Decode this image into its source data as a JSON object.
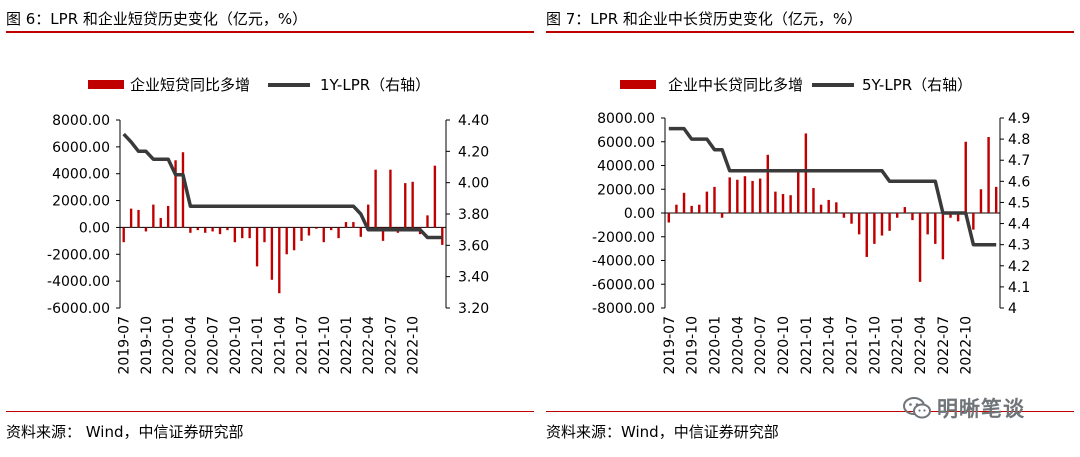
{
  "watermark": {
    "text": "明晰笔谈",
    "icon": "wechat-icon"
  },
  "charts": [
    {
      "title": "图 6：LPR 和企业短贷历史变化（亿元，%）",
      "source": "资料来源：  Wind，中信证券研究部",
      "chart_data": {
        "type": "bar+line",
        "legend": {
          "bar": "企业短贷同比多增",
          "line": "1Y-LPR（右轴）",
          "position": "top"
        },
        "bar_color": "#c00000",
        "line_color": "#3a3a3a",
        "left_axis": {
          "min": -6000,
          "max": 8000,
          "ticks": [
            "8000.00",
            "6000.00",
            "4000.00",
            "2000.00",
            "0.00",
            "-2000.00",
            "-4000.00",
            "-6000.00"
          ]
        },
        "right_axis": {
          "min": 3.2,
          "max": 4.4,
          "ticks": [
            "4.40",
            "4.20",
            "4.00",
            "3.80",
            "3.60",
            "3.40",
            "3.20"
          ]
        },
        "x_ticks": [
          "2019-07",
          "2019-10",
          "2020-01",
          "2020-04",
          "2020-07",
          "2020-10",
          "2021-01",
          "2021-04",
          "2021-07",
          "2021-10",
          "2022-01",
          "2022-04",
          "2022-07",
          "2022-10"
        ],
        "bars": [
          -1100,
          1400,
          1300,
          -300,
          1700,
          700,
          1600,
          5000,
          5600,
          -400,
          -200,
          -400,
          -300,
          -500,
          -200,
          -1100,
          -800,
          -800,
          -2900,
          -1100,
          -3900,
          -4900,
          -2000,
          -1700,
          -1000,
          -600,
          -100,
          -1100,
          -200,
          -800,
          400,
          400,
          -700,
          1700,
          4300,
          -1000,
          4300,
          -400,
          3300,
          3400,
          -500,
          900,
          4600,
          -1300
        ],
        "lpr": [
          4.31,
          4.26,
          4.2,
          4.2,
          4.15,
          4.15,
          4.15,
          4.05,
          4.05,
          3.85,
          3.85,
          3.85,
          3.85,
          3.85,
          3.85,
          3.85,
          3.85,
          3.85,
          3.85,
          3.85,
          3.85,
          3.85,
          3.85,
          3.85,
          3.85,
          3.85,
          3.85,
          3.85,
          3.85,
          3.85,
          3.85,
          3.85,
          3.8,
          3.7,
          3.7,
          3.7,
          3.7,
          3.7,
          3.7,
          3.7,
          3.7,
          3.65,
          3.65,
          3.65
        ]
      }
    },
    {
      "title": "图 7：LPR 和企业中长贷历史变化（亿元，%）",
      "source": "资料来源：Wind，中信证券研究部",
      "chart_data": {
        "type": "bar+line",
        "legend": {
          "bar": "企业中长贷同比多增",
          "line": "5Y-LPR（右轴）",
          "position": "top"
        },
        "bar_color": "#c00000",
        "line_color": "#3a3a3a",
        "left_axis": {
          "min": -8000,
          "max": 8000,
          "ticks": [
            "8000.00",
            "6000.00",
            "4000.00",
            "2000.00",
            "0.00",
            "-2000.00",
            "-4000.00",
            "-6000.00",
            "-8000.00"
          ]
        },
        "right_axis": {
          "min": 4.0,
          "max": 4.9,
          "ticks": [
            "4.9",
            "4.8",
            "4.7",
            "4.6",
            "4.5",
            "4.4",
            "4.3",
            "4.2",
            "4.1",
            "4"
          ]
        },
        "x_ticks": [
          "2019-07",
          "2019-10",
          "2020-01",
          "2020-04",
          "2020-07",
          "2020-10",
          "2021-01",
          "2021-04",
          "2021-07",
          "2021-10",
          "2022-01",
          "2022-04",
          "2022-07",
          "2022-10"
        ],
        "bars": [
          -800,
          700,
          1700,
          600,
          700,
          1800,
          2200,
          -400,
          3000,
          2800,
          3100,
          2700,
          2900,
          4900,
          1800,
          1600,
          1500,
          3700,
          6700,
          2100,
          700,
          1100,
          900,
          -400,
          -900,
          -1800,
          -3700,
          -2600,
          -1900,
          -1500,
          -400,
          500,
          -600,
          -5800,
          -1800,
          -2600,
          -3900,
          -400,
          -700,
          6000,
          -1400,
          2000,
          6400,
          2200
        ],
        "lpr": [
          4.85,
          4.85,
          4.85,
          4.8,
          4.8,
          4.8,
          4.75,
          4.75,
          4.65,
          4.65,
          4.65,
          4.65,
          4.65,
          4.65,
          4.65,
          4.65,
          4.65,
          4.65,
          4.65,
          4.65,
          4.65,
          4.65,
          4.65,
          4.65,
          4.65,
          4.65,
          4.65,
          4.65,
          4.65,
          4.6,
          4.6,
          4.6,
          4.6,
          4.6,
          4.6,
          4.6,
          4.45,
          4.45,
          4.45,
          4.45,
          4.3,
          4.3,
          4.3,
          4.3
        ]
      }
    }
  ]
}
